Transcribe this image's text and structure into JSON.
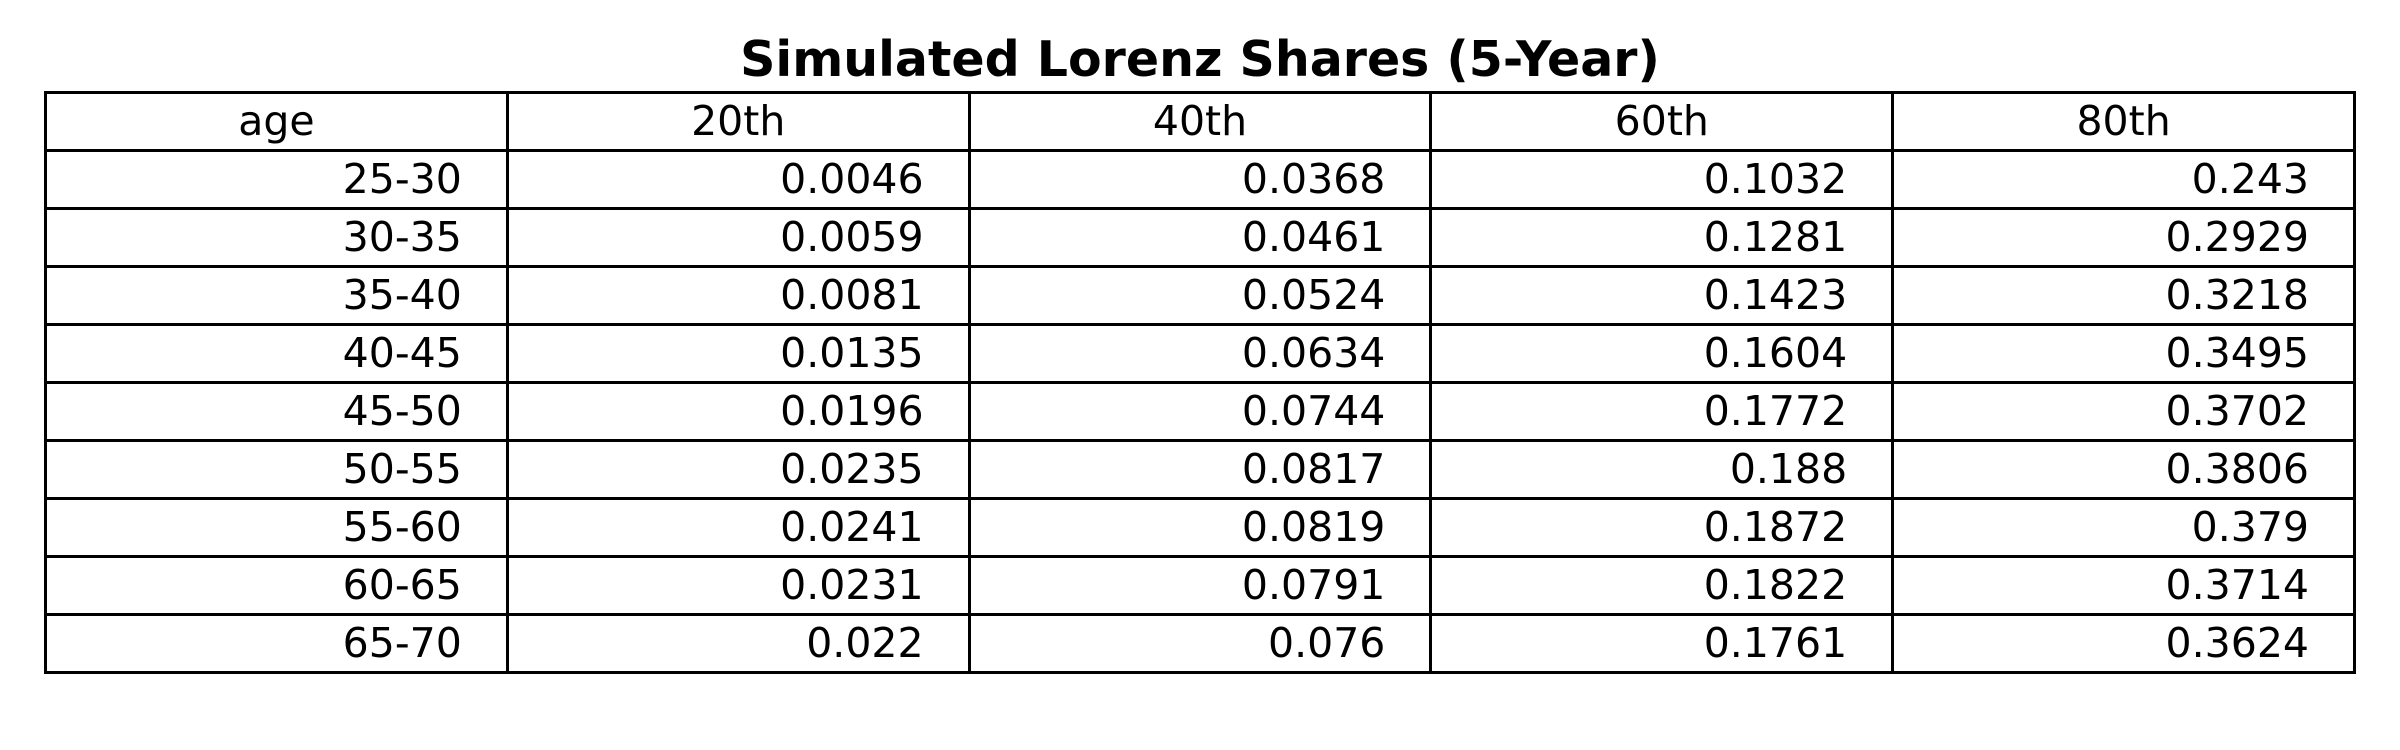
{
  "chart_data": {
    "type": "table",
    "title": "Simulated Lorenz Shares (5-Year)",
    "columns": [
      "age",
      "20th",
      "40th",
      "60th",
      "80th"
    ],
    "rows": [
      [
        "25-30",
        "0.0046",
        "0.0368",
        "0.1032",
        "0.243"
      ],
      [
        "30-35",
        "0.0059",
        "0.0461",
        "0.1281",
        "0.2929"
      ],
      [
        "35-40",
        "0.0081",
        "0.0524",
        "0.1423",
        "0.3218"
      ],
      [
        "40-45",
        "0.0135",
        "0.0634",
        "0.1604",
        "0.3495"
      ],
      [
        "45-50",
        "0.0196",
        "0.0744",
        "0.1772",
        "0.3702"
      ],
      [
        "50-55",
        "0.0235",
        "0.0817",
        "0.188",
        "0.3806"
      ],
      [
        "55-60",
        "0.0241",
        "0.0819",
        "0.1872",
        "0.379"
      ],
      [
        "60-65",
        "0.0231",
        "0.0791",
        "0.1822",
        "0.3714"
      ],
      [
        "65-70",
        "0.022",
        "0.076",
        "0.1761",
        "0.3624"
      ]
    ],
    "grid": true
  }
}
